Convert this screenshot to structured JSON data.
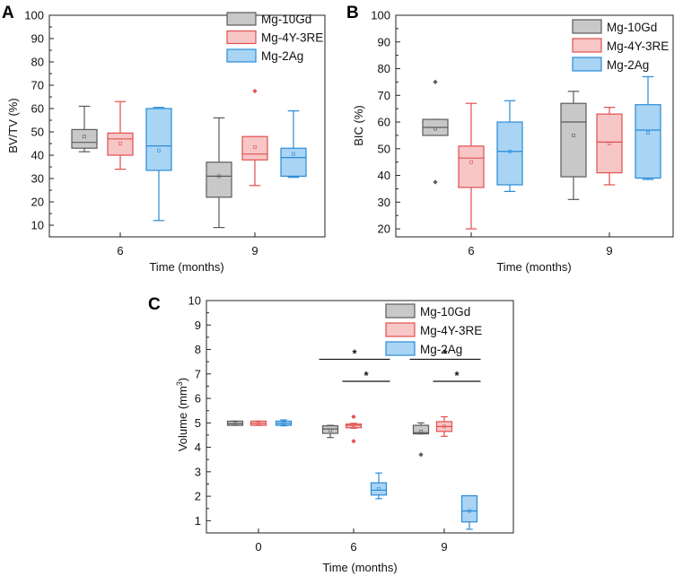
{
  "figure": {
    "series_styles": [
      {
        "name": "Mg-10Gd",
        "fill": "#c8c8c8",
        "stroke": "#5a5a5a"
      },
      {
        "name": "Mg-4Y-3RE",
        "fill": "#f7c6c6",
        "stroke": "#e0504f"
      },
      {
        "name": "Mg-2Ag",
        "fill": "#a9d4f4",
        "stroke": "#2a8bd6"
      }
    ]
  },
  "chart_data": [
    {
      "panel": "A",
      "type": "box",
      "xlabel": "Time (months)",
      "ylabel": "BV/TV (%)",
      "ylim": [
        5,
        100
      ],
      "yticks": [
        10,
        20,
        30,
        40,
        50,
        60,
        70,
        80,
        90,
        100
      ],
      "categories": [
        "6",
        "9"
      ],
      "legend": [
        "Mg-10Gd",
        "Mg-4Y-3RE",
        "Mg-2Ag"
      ],
      "groups": [
        {
          "category": "6",
          "series": [
            {
              "name": "Mg-10Gd",
              "min": 41.5,
              "q1": 43,
              "median": 45.5,
              "q3": 51,
              "max": 61,
              "mean": 48,
              "outliers": []
            },
            {
              "name": "Mg-4Y-3RE",
              "min": 34,
              "q1": 40,
              "median": 47,
              "q3": 49.5,
              "max": 63,
              "mean": 45,
              "outliers": []
            },
            {
              "name": "Mg-2Ag",
              "min": 12,
              "q1": 33.5,
              "median": 44,
              "q3": 60,
              "max": 60.5,
              "mean": 42,
              "outliers": []
            }
          ]
        },
        {
          "category": "9",
          "series": [
            {
              "name": "Mg-10Gd",
              "min": 9,
              "q1": 22,
              "median": 31,
              "q3": 37,
              "max": 56,
              "mean": 31,
              "outliers": []
            },
            {
              "name": "Mg-4Y-3RE",
              "min": 27,
              "q1": 38,
              "median": 40.5,
              "q3": 48,
              "max": 48,
              "mean": 43.5,
              "outliers": [
                67.5
              ]
            },
            {
              "name": "Mg-2Ag",
              "min": 30.5,
              "q1": 31,
              "median": 39,
              "q3": 43,
              "max": 59,
              "mean": 40.5,
              "outliers": []
            }
          ]
        }
      ]
    },
    {
      "panel": "B",
      "type": "box",
      "xlabel": "Time (months)",
      "ylabel": "BIC (%)",
      "ylim": [
        17,
        100
      ],
      "yticks": [
        20,
        30,
        40,
        50,
        60,
        70,
        80,
        90,
        100
      ],
      "categories": [
        "6",
        "9"
      ],
      "legend": [
        "Mg-10Gd",
        "Mg-4Y-3RE",
        "Mg-2Ag"
      ],
      "groups": [
        {
          "category": "6",
          "series": [
            {
              "name": "Mg-10Gd",
              "min": 55,
              "q1": 55,
              "median": 58,
              "q3": 61,
              "max": 61,
              "mean": 57.5,
              "outliers": [
                75,
                37.5
              ]
            },
            {
              "name": "Mg-4Y-3RE",
              "min": 20,
              "q1": 35.5,
              "median": 46.5,
              "q3": 51,
              "max": 67,
              "mean": 45,
              "outliers": []
            },
            {
              "name": "Mg-2Ag",
              "min": 34,
              "q1": 36.5,
              "median": 49,
              "q3": 60,
              "max": 68,
              "mean": 49,
              "outliers": []
            }
          ]
        },
        {
          "category": "9",
          "series": [
            {
              "name": "Mg-10Gd",
              "min": 31,
              "q1": 39.5,
              "median": 60,
              "q3": 67,
              "max": 71.5,
              "mean": 55,
              "outliers": []
            },
            {
              "name": "Mg-4Y-3RE",
              "min": 36.5,
              "q1": 41,
              "median": 52.5,
              "q3": 63,
              "max": 65.5,
              "mean": 52,
              "outliers": []
            },
            {
              "name": "Mg-2Ag",
              "min": 38.5,
              "q1": 39,
              "median": 57,
              "q3": 66.5,
              "max": 77,
              "mean": 56,
              "outliers": []
            }
          ]
        }
      ]
    },
    {
      "panel": "C",
      "type": "box",
      "xlabel": "Time (months)",
      "ylabel_prefix": "Volume (mm",
      "ylabel_sup": "3",
      "ylabel_suffix": ")",
      "ylim": [
        0.5,
        10
      ],
      "yticks": [
        1,
        2,
        3,
        4,
        5,
        6,
        7,
        8,
        9,
        10
      ],
      "categories": [
        "0",
        "6",
        "9"
      ],
      "legend": [
        "Mg-10Gd",
        "Mg-4Y-3RE",
        "Mg-2Ag"
      ],
      "groups": [
        {
          "category": "0",
          "series": [
            {
              "name": "Mg-10Gd",
              "min": 4.9,
              "q1": 4.9,
              "median": 4.97,
              "q3": 5.07,
              "max": 5.07,
              "mean": 4.97,
              "outliers": []
            },
            {
              "name": "Mg-4Y-3RE",
              "min": 4.9,
              "q1": 4.9,
              "median": 4.98,
              "q3": 5.07,
              "max": 5.07,
              "mean": 4.98,
              "outliers": []
            },
            {
              "name": "Mg-2Ag",
              "min": 4.88,
              "q1": 4.9,
              "median": 4.98,
              "q3": 5.07,
              "max": 5.12,
              "mean": 4.98,
              "outliers": []
            }
          ]
        },
        {
          "category": "6",
          "series": [
            {
              "name": "Mg-10Gd",
              "min": 4.4,
              "q1": 4.57,
              "median": 4.75,
              "q3": 4.88,
              "max": 4.9,
              "mean": 4.7,
              "outliers": []
            },
            {
              "name": "Mg-4Y-3RE",
              "min": 4.78,
              "q1": 4.8,
              "median": 4.9,
              "q3": 4.95,
              "max": 4.98,
              "mean": 4.9,
              "outliers": [
                5.25,
                4.25
              ]
            },
            {
              "name": "Mg-2Ag",
              "min": 1.9,
              "q1": 2.05,
              "median": 2.25,
              "q3": 2.55,
              "max": 2.95,
              "mean": 2.3,
              "outliers": []
            }
          ]
        },
        {
          "category": "9",
          "series": [
            {
              "name": "Mg-10Gd",
              "min": 4.55,
              "q1": 4.55,
              "median": 4.6,
              "q3": 4.9,
              "max": 5.0,
              "mean": 4.65,
              "outliers": [
                3.7
              ]
            },
            {
              "name": "Mg-4Y-3RE",
              "min": 4.45,
              "q1": 4.65,
              "median": 4.85,
              "q3": 5.05,
              "max": 5.25,
              "mean": 4.85,
              "outliers": []
            },
            {
              "name": "Mg-2Ag",
              "min": 0.65,
              "q1": 0.95,
              "median": 1.4,
              "q3": 2.02,
              "max": 2.02,
              "mean": 1.4,
              "outliers": []
            }
          ]
        }
      ],
      "significance": [
        {
          "category": "6",
          "from": "Mg-10Gd",
          "to": "Mg-2Ag",
          "level": 7.6,
          "label": "*"
        },
        {
          "category": "6",
          "from": "Mg-4Y-3RE",
          "to": "Mg-2Ag",
          "level": 6.7,
          "label": "*"
        },
        {
          "category": "9",
          "from": "Mg-10Gd",
          "to": "Mg-2Ag",
          "level": 7.6,
          "label": "*"
        },
        {
          "category": "9",
          "from": "Mg-4Y-3RE",
          "to": "Mg-2Ag",
          "level": 6.7,
          "label": "*"
        }
      ]
    }
  ]
}
